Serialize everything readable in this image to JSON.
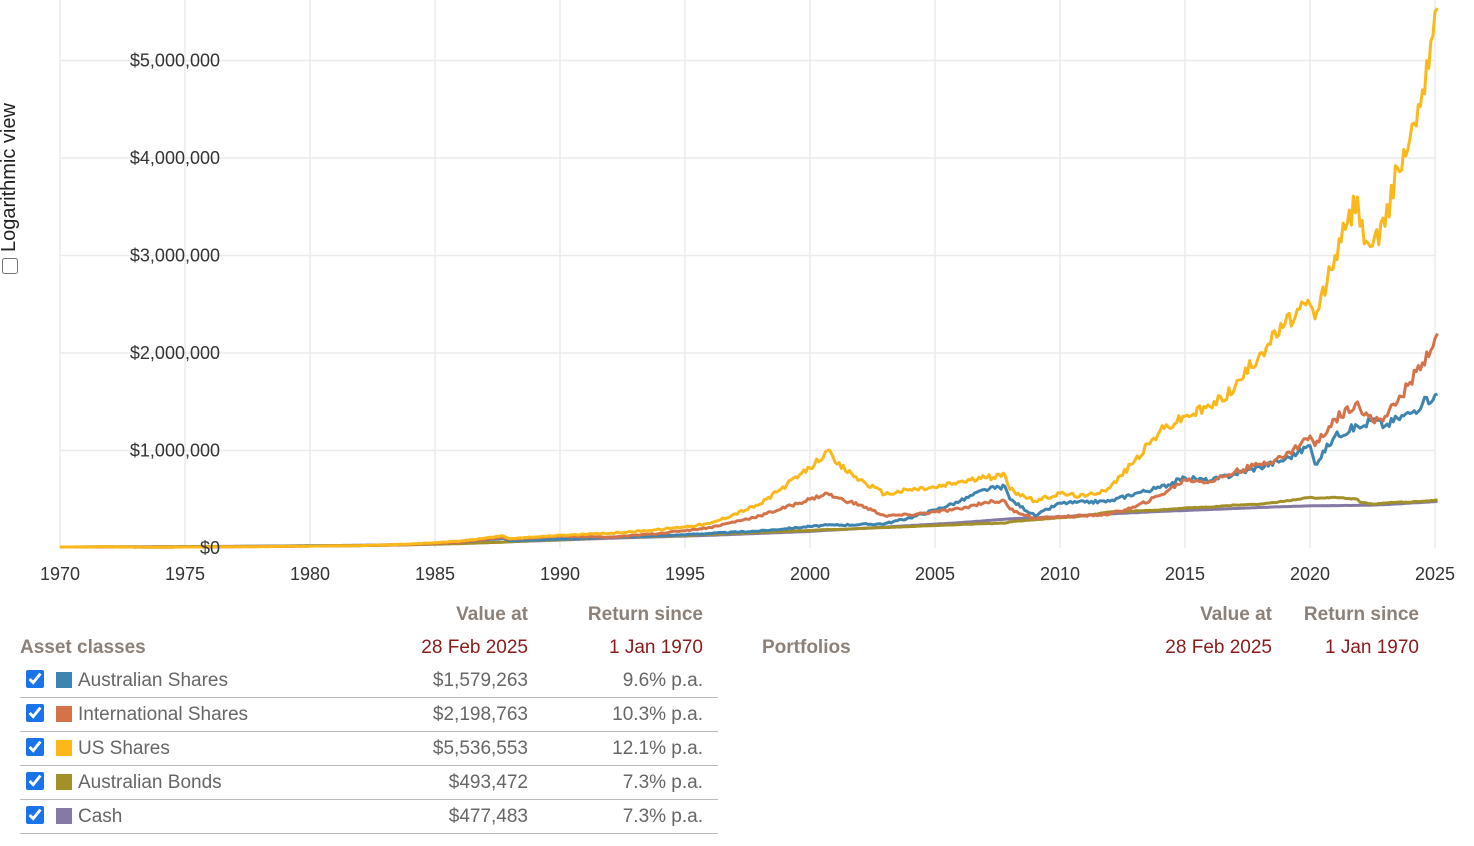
{
  "log_toggle": {
    "label": "Logarithmic view",
    "checked": false
  },
  "chart_data": {
    "type": "line",
    "title": "",
    "xlabel": "",
    "ylabel": "",
    "xlim": [
      1970,
      2025.2
    ],
    "ylim": [
      0,
      5600000
    ],
    "grid": true,
    "x_ticks": [
      "1970",
      "1975",
      "1980",
      "1985",
      "1990",
      "1995",
      "2000",
      "2005",
      "2010",
      "2015",
      "2020",
      "2025"
    ],
    "y_ticks": [
      {
        "value": 0,
        "label": "$0"
      },
      {
        "value": 1000000,
        "label": "$1,000,000"
      },
      {
        "value": 2000000,
        "label": "$2,000,000"
      },
      {
        "value": 3000000,
        "label": "$3,000,000"
      },
      {
        "value": 4000000,
        "label": "$4,000,000"
      },
      {
        "value": 5000000,
        "label": "$5,000,000"
      }
    ],
    "x": [
      1970,
      1972,
      1974,
      1976,
      1978,
      1980,
      1982,
      1984,
      1986,
      1987.7,
      1988,
      1990,
      1992,
      1994,
      1996,
      1998,
      2000,
      2000.7,
      2001,
      2002,
      2003,
      2004,
      2005,
      2006,
      2007,
      2007.8,
      2008,
      2009,
      2010,
      2011,
      2012,
      2013,
      2014,
      2015,
      2016,
      2017,
      2018,
      2019,
      2020,
      2020.2,
      2021,
      2021.9,
      2022,
      2022.5,
      2023,
      2023.5,
      2024,
      2024.5,
      2025,
      2025.1
    ],
    "series": [
      {
        "name": "Australian Shares",
        "color": "#3d85b0",
        "values": [
          10000,
          11000,
          9000,
          13000,
          17000,
          24000,
          26000,
          36000,
          60000,
          100000,
          75000,
          90000,
          110000,
          125000,
          150000,
          175000,
          220000,
          235000,
          235000,
          240000,
          250000,
          310000,
          390000,
          480000,
          600000,
          630000,
          500000,
          330000,
          460000,
          470000,
          480000,
          560000,
          620000,
          720000,
          690000,
          760000,
          830000,
          910000,
          1050000,
          860000,
          1150000,
          1250000,
          1230000,
          1320000,
          1250000,
          1330000,
          1380000,
          1480000,
          1570000,
          1579263
        ]
      },
      {
        "name": "International Shares",
        "color": "#d4734a",
        "values": [
          10000,
          11000,
          9000,
          12000,
          15000,
          20000,
          25000,
          35000,
          60000,
          110000,
          90000,
          120000,
          110000,
          150000,
          210000,
          330000,
          500000,
          560000,
          520000,
          440000,
          330000,
          340000,
          370000,
          400000,
          470000,
          480000,
          400000,
          300000,
          320000,
          330000,
          350000,
          420000,
          540000,
          700000,
          680000,
          780000,
          860000,
          940000,
          1150000,
          1050000,
          1320000,
          1500000,
          1430000,
          1300000,
          1350000,
          1500000,
          1700000,
          1900000,
          2150000,
          2198763
        ]
      },
      {
        "name": "US Shares",
        "color": "#fbb81a",
        "values": [
          10000,
          12000,
          8000,
          12000,
          14000,
          20000,
          24000,
          40000,
          70000,
          125000,
          95000,
          130000,
          150000,
          190000,
          250000,
          450000,
          820000,
          1000000,
          880000,
          700000,
          550000,
          600000,
          620000,
          680000,
          720000,
          750000,
          600000,
          480000,
          560000,
          530000,
          620000,
          900000,
          1200000,
          1350000,
          1450000,
          1650000,
          2000000,
          2300000,
          2500000,
          2350000,
          3000000,
          3600000,
          3300000,
          3100000,
          3300000,
          3900000,
          4200000,
          4700000,
          5500000,
          5536553
        ]
      },
      {
        "name": "Australian Bonds",
        "color": "#a39028",
        "values": [
          10000,
          11000,
          12000,
          14000,
          17000,
          20000,
          25000,
          33000,
          45000,
          60000,
          65000,
          85000,
          110000,
          120000,
          140000,
          160000,
          180000,
          190000,
          190000,
          200000,
          210000,
          220000,
          230000,
          240000,
          250000,
          255000,
          270000,
          290000,
          310000,
          330000,
          370000,
          380000,
          390000,
          410000,
          420000,
          440000,
          450000,
          480000,
          520000,
          510000,
          520000,
          500000,
          470000,
          450000,
          460000,
          470000,
          470000,
          480000,
          490000,
          493472
        ]
      },
      {
        "name": "Cash",
        "color": "#857aa3",
        "values": [
          10000,
          11500,
          13000,
          15500,
          18500,
          22500,
          28000,
          36000,
          48000,
          60000,
          64000,
          82000,
          100000,
          115000,
          130000,
          150000,
          170000,
          182000,
          185000,
          200000,
          215000,
          230000,
          245000,
          260000,
          280000,
          295000,
          300000,
          310000,
          320000,
          335000,
          350000,
          362000,
          375000,
          385000,
          395000,
          405000,
          415000,
          425000,
          432000,
          433000,
          435000,
          437000,
          438000,
          440000,
          445000,
          452000,
          460000,
          468000,
          476000,
          477483
        ]
      }
    ]
  },
  "asset_table": {
    "title": "Asset classes",
    "col_value_header": "Value at",
    "col_value_date": "28 Feb 2025",
    "col_return_header": "Return since",
    "col_return_date": "1 Jan 1970",
    "rows": [
      {
        "name": "Australian Shares",
        "color": "#3d85b0",
        "value": "$1,579,263",
        "return": "9.6% p.a.",
        "checked": true
      },
      {
        "name": "International Shares",
        "color": "#d4734a",
        "value": "$2,198,763",
        "return": "10.3% p.a.",
        "checked": true
      },
      {
        "name": "US Shares",
        "color": "#fbb81a",
        "value": "$5,536,553",
        "return": "12.1% p.a.",
        "checked": true
      },
      {
        "name": "Australian Bonds",
        "color": "#a39028",
        "value": "$493,472",
        "return": "7.3% p.a.",
        "checked": true
      },
      {
        "name": "Cash",
        "color": "#857aa3",
        "value": "$477,483",
        "return": "7.3% p.a.",
        "checked": true
      }
    ]
  },
  "portfolio_table": {
    "title": "Portfolios",
    "col_value_header": "Value at",
    "col_value_date": "28 Feb 2025",
    "col_return_header": "Return since",
    "col_return_date": "1 Jan 1970"
  }
}
